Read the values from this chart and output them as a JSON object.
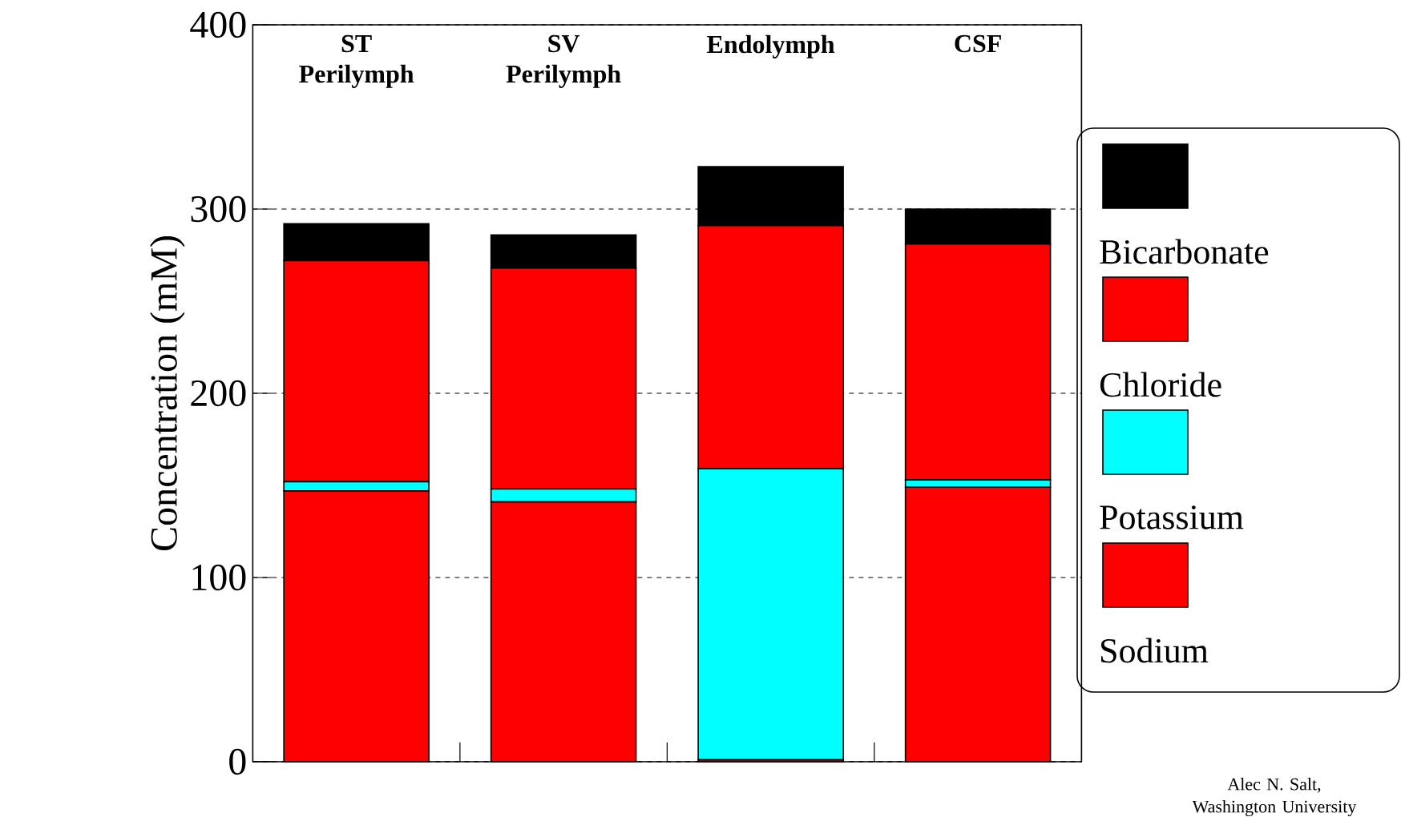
{
  "chart_data": {
    "type": "bar",
    "stacked": true,
    "ylabel": "Concentration (mM)",
    "categories": [
      "ST Perilymph",
      "SV Perilymph",
      "Endolymph",
      "CSF"
    ],
    "series": [
      {
        "name": "Sodium",
        "color": "#ff0000",
        "values": [
          147,
          141,
          1,
          149
        ]
      },
      {
        "name": "Potassium",
        "color": "#00ffff",
        "values": [
          5,
          7,
          158,
          4
        ]
      },
      {
        "name": "Chloride",
        "color": "#ff0000",
        "values": [
          120,
          120,
          132,
          128
        ]
      },
      {
        "name": "Bicarbonate",
        "color": "#000000",
        "values": [
          20,
          18,
          32,
          19
        ]
      }
    ],
    "ylim": [
      0,
      400
    ],
    "yticks": [
      0,
      100,
      200,
      300,
      400
    ],
    "grid": "y",
    "legend": "right",
    "annotations": [
      "Alec N. Salt, Washington University"
    ]
  }
}
